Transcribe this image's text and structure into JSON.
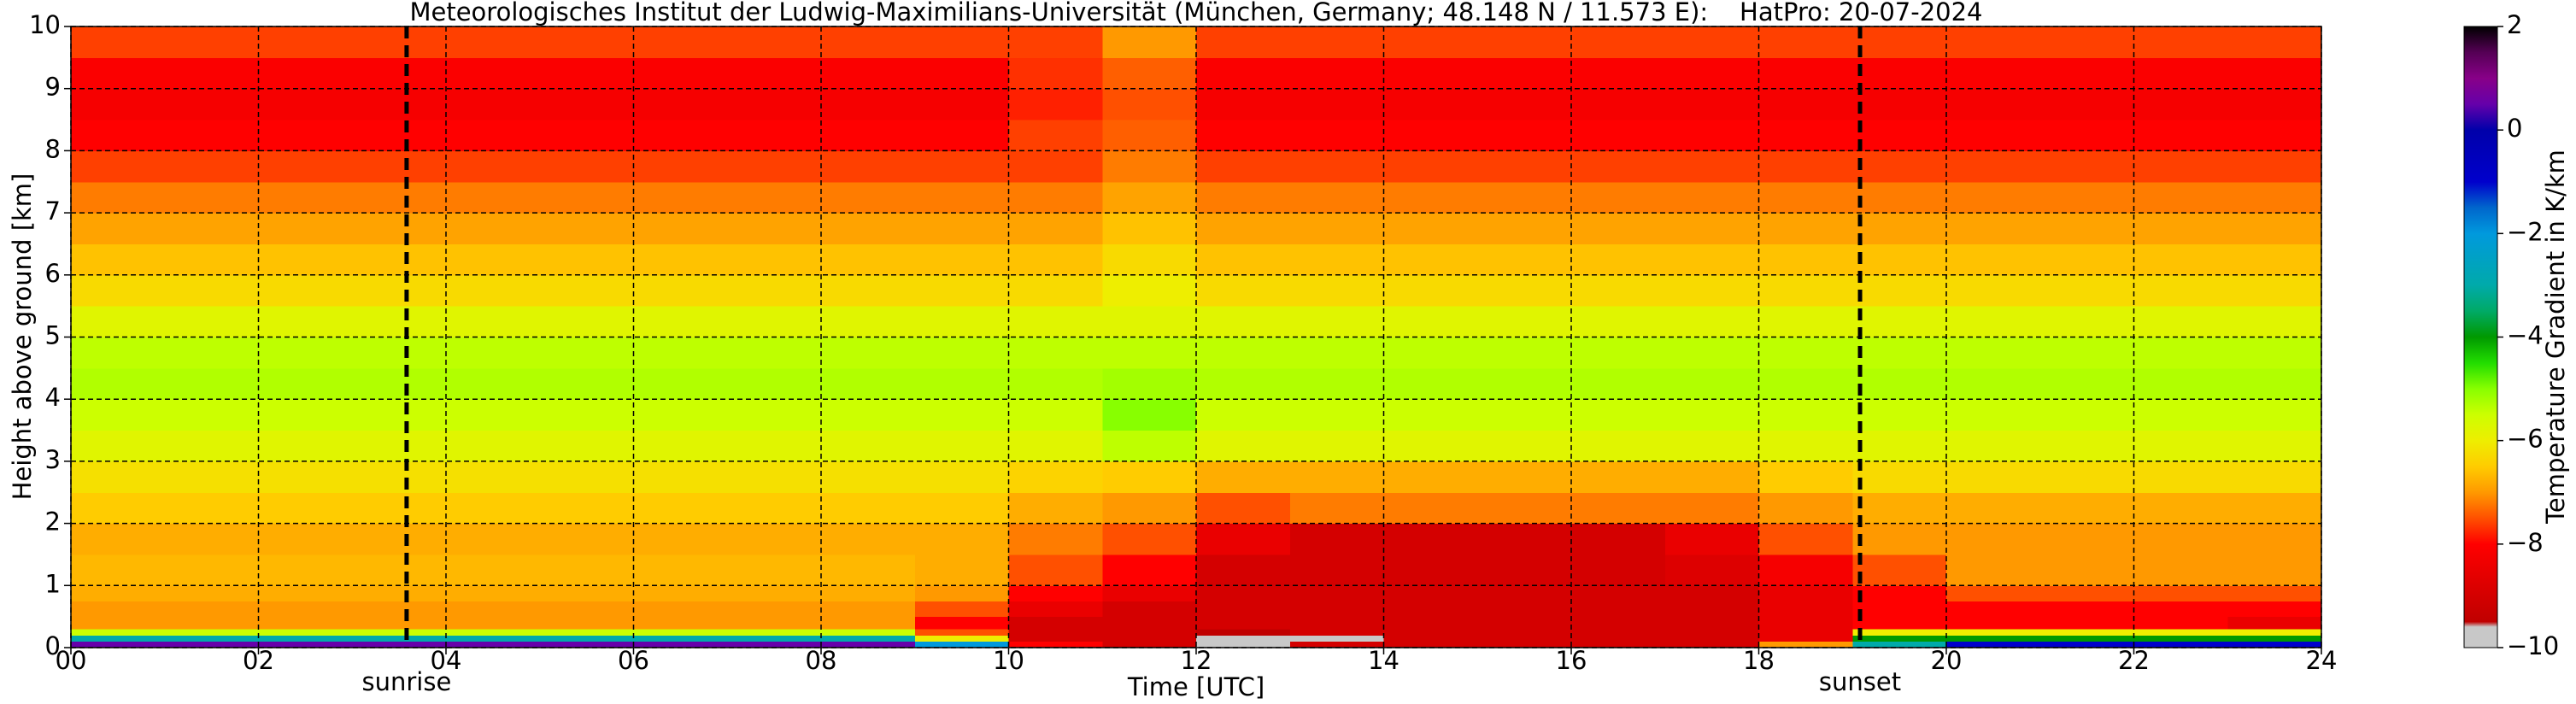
{
  "chart_data": {
    "type": "heatmap",
    "title": "Meteorologisches Institut der Ludwig-Maximilians-Universität (München, Germany; 48.148 N / 11.573 E):    HatPro: 20-07-2024",
    "x_label": "Time [UTC]",
    "y_label": "Height above ground [km]",
    "colorbar_label": "Temperature Gradient in K/km",
    "x_bins": [
      0,
      1,
      2,
      3,
      4,
      5,
      6,
      7,
      8,
      9,
      10,
      11,
      12,
      13,
      14,
      15,
      16,
      17,
      18,
      19,
      20,
      21,
      22,
      23,
      24
    ],
    "y_bins": [
      0,
      0.1,
      0.2,
      0.3,
      0.5,
      0.75,
      1,
      1.5,
      2,
      2.5,
      3,
      3.5,
      4,
      4.5,
      5,
      5.5,
      6,
      6.5,
      7,
      7.5,
      8,
      8.5,
      9,
      9.5,
      10
    ],
    "values": [
      [
        0.5,
        0.5,
        0.5,
        0.5,
        0.5,
        0.5,
        0.5,
        0.5,
        0.5,
        -2,
        -8,
        -9,
        -9.8,
        -9,
        -9,
        -9,
        -9,
        -9,
        -7,
        -3,
        -1,
        -1,
        -1,
        -1
      ],
      [
        -3,
        -3,
        -3,
        -3,
        -3,
        -3,
        -3,
        -3,
        -3,
        -6,
        -9,
        -9,
        -9.8,
        -9.8,
        -9,
        -9,
        -9,
        -9,
        -8.5,
        -4,
        -4,
        -4,
        -4,
        -4
      ],
      [
        -5.5,
        -5.5,
        -5.5,
        -5.5,
        -5.5,
        -5.5,
        -5.5,
        -5.5,
        -5.5,
        -7.5,
        -9,
        -9,
        -9.5,
        -9,
        -9,
        -9,
        -9,
        -9,
        -8.5,
        -6,
        -6,
        -6,
        -6,
        -6
      ],
      [
        -7,
        -7,
        -7,
        -7,
        -7,
        -7,
        -7,
        -7,
        -7,
        -8,
        -9,
        -9,
        -9,
        -9,
        -9,
        -9,
        -9,
        -9,
        -8.5,
        -8,
        -8,
        -8,
        -8,
        -8.5
      ],
      [
        -7,
        -7,
        -7,
        -7,
        -7,
        -7,
        -7,
        -7,
        -7,
        -7.5,
        -8.5,
        -9,
        -9,
        -9,
        -9,
        -9,
        -9,
        -9,
        -8.5,
        -8,
        -8,
        -8,
        -8,
        -8
      ],
      [
        -6.8,
        -6.8,
        -6.8,
        -6.8,
        -6.8,
        -6.8,
        -6.8,
        -6.8,
        -6.8,
        -7,
        -8,
        -8.5,
        -9,
        -9,
        -9,
        -9,
        -9,
        -9,
        -8.5,
        -8,
        -7.5,
        -7.5,
        -7.5,
        -7.5
      ],
      [
        -6.7,
        -6.7,
        -6.7,
        -6.7,
        -6.7,
        -6.7,
        -6.7,
        -6.7,
        -6.7,
        -6.8,
        -7.5,
        -8,
        -9,
        -9,
        -9,
        -9,
        -9,
        -8.8,
        -8.2,
        -7.5,
        -7,
        -7,
        -7,
        -7
      ],
      [
        -6.8,
        -6.8,
        -6.8,
        -6.8,
        -6.8,
        -6.8,
        -6.8,
        -6.8,
        -6.8,
        -6.8,
        -7.2,
        -7.5,
        -8.5,
        -9,
        -9,
        -9,
        -9,
        -8.5,
        -7.5,
        -7,
        -7,
        -7,
        -7,
        -7
      ],
      [
        -6.5,
        -6.5,
        -6.5,
        -6.5,
        -6.5,
        -6.5,
        -6.5,
        -6.5,
        -6.5,
        -6.5,
        -6.8,
        -7,
        -7.5,
        -7.2,
        -7.2,
        -7.2,
        -7.2,
        -7.2,
        -7,
        -6.8,
        -6.8,
        -6.8,
        -6.8,
        -6.8
      ],
      [
        -6.2,
        -6.2,
        -6.2,
        -6.2,
        -6.2,
        -6.2,
        -6.2,
        -6.2,
        -6.2,
        -6.2,
        -6.4,
        -6.5,
        -6.8,
        -6.8,
        -6.8,
        -6.8,
        -6.8,
        -6.8,
        -6.5,
        -6.3,
        -6.3,
        -6.3,
        -6.3,
        -6.3
      ],
      [
        -5.8,
        -5.8,
        -5.8,
        -5.8,
        -5.8,
        -5.8,
        -5.8,
        -5.8,
        -5.8,
        -5.8,
        -5.8,
        -5.4,
        -5.8,
        -5.8,
        -5.8,
        -5.8,
        -5.8,
        -5.8,
        -5.8,
        -5.8,
        -5.8,
        -5.8,
        -5.8,
        -5.8
      ],
      [
        -5.5,
        -5.5,
        -5.5,
        -5.5,
        -5.5,
        -5.5,
        -5.5,
        -5.5,
        -5.5,
        -5.5,
        -5.5,
        -5,
        -5.5,
        -5.5,
        -5.5,
        -5.5,
        -5.5,
        -5.5,
        -5.5,
        -5.5,
        -5.5,
        -5.5,
        -5.5,
        -5.5
      ],
      [
        -5.3,
        -5.3,
        -5.3,
        -5.3,
        -5.3,
        -5.3,
        -5.3,
        -5.3,
        -5.3,
        -5.3,
        -5.3,
        -5.2,
        -5.3,
        -5.3,
        -5.3,
        -5.3,
        -5.3,
        -5.3,
        -5.3,
        -5.3,
        -5.3,
        -5.3,
        -5.3,
        -5.3
      ],
      [
        -5.4,
        -5.4,
        -5.4,
        -5.4,
        -5.4,
        -5.4,
        -5.4,
        -5.4,
        -5.4,
        -5.4,
        -5.4,
        -5.4,
        -5.4,
        -5.4,
        -5.4,
        -5.4,
        -5.4,
        -5.4,
        -5.4,
        -5.4,
        -5.4,
        -5.4,
        -5.4,
        -5.4
      ],
      [
        -5.8,
        -5.8,
        -5.8,
        -5.8,
        -5.8,
        -5.8,
        -5.8,
        -5.8,
        -5.8,
        -5.8,
        -5.8,
        -5.8,
        -5.8,
        -5.8,
        -5.8,
        -5.8,
        -5.8,
        -5.8,
        -5.8,
        -5.8,
        -5.8,
        -5.8,
        -5.8,
        -5.8
      ],
      [
        -6.3,
        -6.3,
        -6.3,
        -6.3,
        -6.3,
        -6.3,
        -6.3,
        -6.3,
        -6.3,
        -6.3,
        -6.3,
        -6,
        -6.3,
        -6.3,
        -6.3,
        -6.3,
        -6.3,
        -6.3,
        -6.3,
        -6.3,
        -6.3,
        -6.3,
        -6.3,
        -6.3
      ],
      [
        -6.6,
        -6.6,
        -6.6,
        -6.6,
        -6.6,
        -6.6,
        -6.6,
        -6.6,
        -6.6,
        -6.6,
        -6.6,
        -6.3,
        -6.6,
        -6.6,
        -6.6,
        -6.6,
        -6.6,
        -6.6,
        -6.6,
        -6.6,
        -6.6,
        -6.6,
        -6.6,
        -6.6
      ],
      [
        -6.9,
        -6.9,
        -6.9,
        -6.9,
        -6.9,
        -6.9,
        -6.9,
        -6.9,
        -6.9,
        -6.9,
        -6.9,
        -6.6,
        -6.9,
        -6.9,
        -6.9,
        -6.9,
        -6.9,
        -6.9,
        -6.9,
        -6.9,
        -6.9,
        -6.9,
        -6.9,
        -6.9
      ],
      [
        -7.2,
        -7.2,
        -7.2,
        -7.2,
        -7.2,
        -7.2,
        -7.2,
        -7.2,
        -7.2,
        -7.2,
        -7.2,
        -6.9,
        -7.2,
        -7.2,
        -7.2,
        -7.2,
        -7.2,
        -7.2,
        -7.2,
        -7.2,
        -7.2,
        -7.2,
        -7.2,
        -7.2
      ],
      [
        -7.6,
        -7.6,
        -7.6,
        -7.6,
        -7.6,
        -7.6,
        -7.6,
        -7.6,
        -7.6,
        -7.6,
        -7.6,
        -7.2,
        -7.6,
        -7.6,
        -7.6,
        -7.6,
        -7.6,
        -7.6,
        -7.6,
        -7.6,
        -7.6,
        -7.6,
        -7.6,
        -7.6
      ],
      [
        -8,
        -8,
        -8,
        -8,
        -8,
        -8,
        -8,
        -8,
        -8,
        -8,
        -7.6,
        -7.4,
        -8,
        -8,
        -8,
        -8,
        -8,
        -8,
        -8,
        -8,
        -8,
        -8,
        -8,
        -8
      ],
      [
        -8.2,
        -8.2,
        -8.2,
        -8.2,
        -8.2,
        -8.2,
        -8.2,
        -8.2,
        -8.2,
        -8.2,
        -7.8,
        -7.5,
        -8.2,
        -8.2,
        -8.2,
        -8.2,
        -8.2,
        -8.2,
        -8.2,
        -8.2,
        -8.2,
        -8.2,
        -8.2,
        -8.2
      ],
      [
        -8.1,
        -8.1,
        -8.1,
        -8.1,
        -8.1,
        -8.1,
        -8.1,
        -8.1,
        -8.1,
        -8.1,
        -7.7,
        -7.4,
        -8.1,
        -8.1,
        -8.1,
        -8.1,
        -8.1,
        -8.1,
        -8.1,
        -8.1,
        -8.1,
        -8.1,
        -8.1,
        -8.1
      ],
      [
        -7.6,
        -7.6,
        -7.6,
        -7.6,
        -7.6,
        -7.6,
        -7.6,
        -7.6,
        -7.6,
        -7.6,
        -7.6,
        -7,
        -7.6,
        -7.6,
        -7.6,
        -7.6,
        -7.6,
        -7.6,
        -7.6,
        -7.6,
        -7.6,
        -7.6,
        -7.6,
        -7.6
      ]
    ],
    "xlim": [
      0,
      24
    ],
    "ylim": [
      0,
      10
    ],
    "xticks": [
      {
        "value": 0,
        "label": "00"
      },
      {
        "value": 2,
        "label": "02"
      },
      {
        "value": 4,
        "label": "04"
      },
      {
        "value": 6,
        "label": "06"
      },
      {
        "value": 8,
        "label": "08"
      },
      10,
      12,
      14,
      16,
      18,
      20,
      22,
      24
    ],
    "yticks": [
      0,
      1,
      2,
      3,
      4,
      5,
      6,
      7,
      8,
      9,
      10
    ],
    "grid": true,
    "clim": [
      -10,
      2
    ],
    "cticks": [
      {
        "value": -10,
        "label": "−10"
      },
      {
        "value": -8,
        "label": "−8"
      },
      {
        "value": -6,
        "label": "−6"
      },
      {
        "value": -4,
        "label": "−4"
      },
      {
        "value": -2,
        "label": "−2"
      },
      0,
      2
    ],
    "colorscale": [
      [
        -10,
        "#c8c8c8"
      ],
      [
        -9.6,
        "#c8c8c8"
      ],
      [
        -9.5,
        "#c00000"
      ],
      [
        -9,
        "#d40000"
      ],
      [
        -8,
        "#ff0000"
      ],
      [
        -7.5,
        "#ff5000"
      ],
      [
        -7,
        "#ff9900"
      ],
      [
        -6.5,
        "#ffcc00"
      ],
      [
        -6,
        "#eeee00"
      ],
      [
        -5.5,
        "#ccff00"
      ],
      [
        -5,
        "#88ff00"
      ],
      [
        -4.5,
        "#22dd00"
      ],
      [
        -4,
        "#009900"
      ],
      [
        -3.5,
        "#00aa66"
      ],
      [
        -3,
        "#00aaaa"
      ],
      [
        -2,
        "#0099dd"
      ],
      [
        -1.5,
        "#0066cc"
      ],
      [
        -1,
        "#0000cc"
      ],
      [
        0,
        "#0000aa"
      ],
      [
        0.5,
        "#6600aa"
      ],
      [
        1,
        "#880088"
      ],
      [
        1.5,
        "#550055"
      ],
      [
        2,
        "#000000"
      ]
    ],
    "annotations": [
      {
        "x": 3.58,
        "text": "sunrise"
      },
      {
        "x": 19.08,
        "text": "sunset"
      }
    ]
  }
}
